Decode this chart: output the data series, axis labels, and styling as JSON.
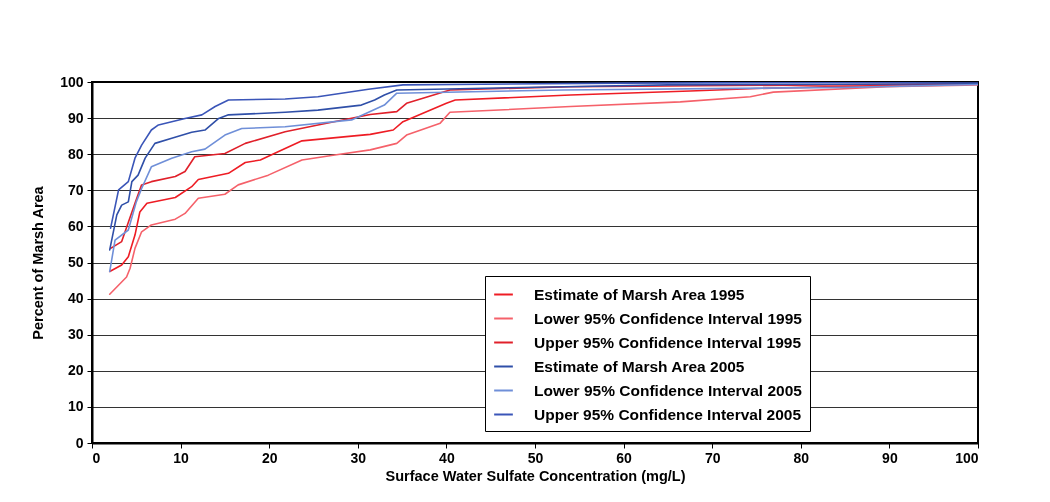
{
  "chart_data": {
    "type": "line",
    "xlabel": "Surface Water Sulfate Concentration (mg/L)",
    "ylabel": "Percent of Marsh Area",
    "xlim": [
      0,
      100
    ],
    "ylim": [
      0,
      100
    ],
    "xticks": [
      0,
      10,
      20,
      30,
      40,
      50,
      60,
      70,
      80,
      90,
      100
    ],
    "yticks": [
      0,
      10,
      20,
      30,
      40,
      50,
      60,
      70,
      80,
      90,
      100
    ],
    "grid": "y",
    "legend": "bottom right",
    "marker": "none",
    "line_style": "solid",
    "series": [
      {
        "name": "Estimate of Marsh Area 1995",
        "color": "#ee1c24",
        "x": [
          2,
          3.35,
          4.1,
          4.85,
          5.4,
          6.2,
          9.4,
          11.25,
          12,
          15.4,
          17.3,
          19,
          21,
          23.7,
          29.3,
          31.4,
          34,
          35.1,
          40,
          41,
          54,
          67.5,
          75,
          85,
          100
        ],
        "values": [
          47.5,
          49.3,
          51.6,
          57.6,
          64,
          66.4,
          68,
          71,
          73,
          74.7,
          77.7,
          78.4,
          80.7,
          83.7,
          85,
          85.5,
          86.7,
          89,
          94.1,
          95,
          96.4,
          97.5,
          98.2,
          98.8,
          99.5
        ]
      },
      {
        "name": "Lower 95% Confidence Interval 1995",
        "color": "#f5616a",
        "x": [
          2,
          3.9,
          4.3,
          4.85,
          5.6,
          6.7,
          9.4,
          10.5,
          12,
          15,
          16.5,
          19.9,
          23.7,
          27.4,
          31.4,
          34.4,
          35.5,
          39.3,
          40.4,
          54,
          66.4,
          74.3,
          76.9,
          89.7,
          100
        ],
        "values": [
          41.2,
          46,
          48.4,
          53.9,
          58.5,
          60.4,
          62,
          63.6,
          67.8,
          68.9,
          71.5,
          74.2,
          78.4,
          79.8,
          81.2,
          83,
          85.3,
          88.6,
          91.6,
          93.2,
          94.5,
          95.9,
          97.2,
          98.7,
          99.2
        ]
      },
      {
        "name": "Upper 95% Confidence Interval 1995",
        "color": "#e0202a",
        "x": [
          2.1,
          3.35,
          4.85,
          5.6,
          6.7,
          9.4,
          10.5,
          11.6,
          15,
          17.3,
          21.8,
          25.5,
          31.4,
          34.4,
          35.5,
          40.4,
          54,
          100
        ],
        "values": [
          53.9,
          55.8,
          66.4,
          71.5,
          72.4,
          73.8,
          75.2,
          79.3,
          80.2,
          83,
          86.2,
          88.1,
          91,
          91.8,
          94.1,
          97.8,
          98.7,
          99.5
        ]
      },
      {
        "name": "Estimate of Marsh Area 2005",
        "color": "#2f4fa8",
        "x": [
          2,
          2.8,
          3.35,
          4.1,
          4.5,
          5.2,
          6,
          7.1,
          9,
          11.25,
          12.75,
          14.3,
          15.4,
          21.8,
          25.5,
          30.4,
          31.9,
          33,
          34.4,
          53.2,
          65,
          100
        ],
        "values": [
          53.5,
          63.2,
          65.9,
          66.8,
          72.4,
          74.2,
          78.9,
          83,
          84.4,
          86.1,
          86.7,
          89.9,
          90.9,
          91.6,
          92.2,
          93.6,
          95,
          96.4,
          97.8,
          98.7,
          99.2,
          99.5
        ]
      },
      {
        "name": "Lower 95% Confidence Interval 2005",
        "color": "#6f8fd8",
        "x": [
          2,
          2.6,
          4.1,
          5,
          5.6,
          6.7,
          9,
          11.25,
          12.75,
          15,
          16.9,
          21.8,
          29.3,
          33,
          34.4,
          53.2,
          85,
          100
        ],
        "values": [
          47.5,
          56.2,
          59,
          66.8,
          70.5,
          76.5,
          78.9,
          80.7,
          81.4,
          85.3,
          87.1,
          87.6,
          89.5,
          93.6,
          96.9,
          97.8,
          98.5,
          99.3
        ]
      },
      {
        "name": "Upper 95% Confidence Interval 2005",
        "color": "#3a55b8",
        "x": [
          2.1,
          3,
          4.1,
          4.85,
          5.6,
          6.7,
          7.5,
          10.5,
          12.4,
          13.9,
          15.4,
          21.8,
          25.5,
          31.2,
          35.1,
          60,
          100
        ],
        "values": [
          59.5,
          70.1,
          72.4,
          78.9,
          82.5,
          86.7,
          88.1,
          89.9,
          90.9,
          93.2,
          95,
          95.3,
          95.9,
          98,
          99.2,
          99.7,
          100
        ]
      }
    ]
  }
}
